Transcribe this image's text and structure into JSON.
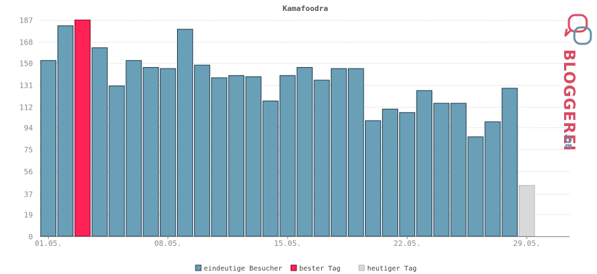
{
  "chart_data": {
    "type": "bar",
    "title": "Kamafoodra",
    "xlabel": "",
    "ylabel": "",
    "ylim": [
      0,
      196
    ],
    "y_ticks": [
      0,
      19,
      37,
      56,
      75,
      94,
      112,
      131,
      150,
      168,
      187
    ],
    "x_tick_labels": [
      {
        "index": 0,
        "label": "01.05."
      },
      {
        "index": 7,
        "label": "08.05."
      },
      {
        "index": 14,
        "label": "15.05."
      },
      {
        "index": 21,
        "label": "22.05."
      },
      {
        "index": 28,
        "label": "29.05."
      }
    ],
    "grid": true,
    "legend_position": "bottom",
    "values": [
      152,
      182,
      187,
      163,
      130,
      152,
      146,
      145,
      179,
      148,
      137,
      139,
      138,
      117,
      139,
      146,
      135,
      145,
      145,
      100,
      110,
      107,
      126,
      115,
      115,
      86,
      99,
      128,
      44
    ],
    "bar_kinds": [
      "normal",
      "normal",
      "best",
      "normal",
      "normal",
      "normal",
      "normal",
      "normal",
      "normal",
      "normal",
      "normal",
      "normal",
      "normal",
      "normal",
      "normal",
      "normal",
      "normal",
      "normal",
      "normal",
      "normal",
      "normal",
      "normal",
      "normal",
      "normal",
      "normal",
      "normal",
      "normal",
      "normal",
      "today"
    ],
    "slots": 31,
    "legend": [
      {
        "kind": "normal",
        "label": "eindeutige Besucher"
      },
      {
        "kind": "best",
        "label": "bester Tag"
      },
      {
        "kind": "today",
        "label": "heutiger Tag"
      }
    ],
    "colors": {
      "normal": "#6a9fb8",
      "best": "#ff2255",
      "today": "#d9d9d9",
      "normal_stroke": "#1f3a47",
      "best_stroke": "#7a0020",
      "today_stroke": "#b5b5b5"
    }
  },
  "logo": {
    "text_main": "BLOGGEREI",
    "text_suffix": ".DE",
    "icon": "speech-bubbles-icon",
    "color_red": "#d94b62",
    "color_blue": "#6a90a8"
  }
}
